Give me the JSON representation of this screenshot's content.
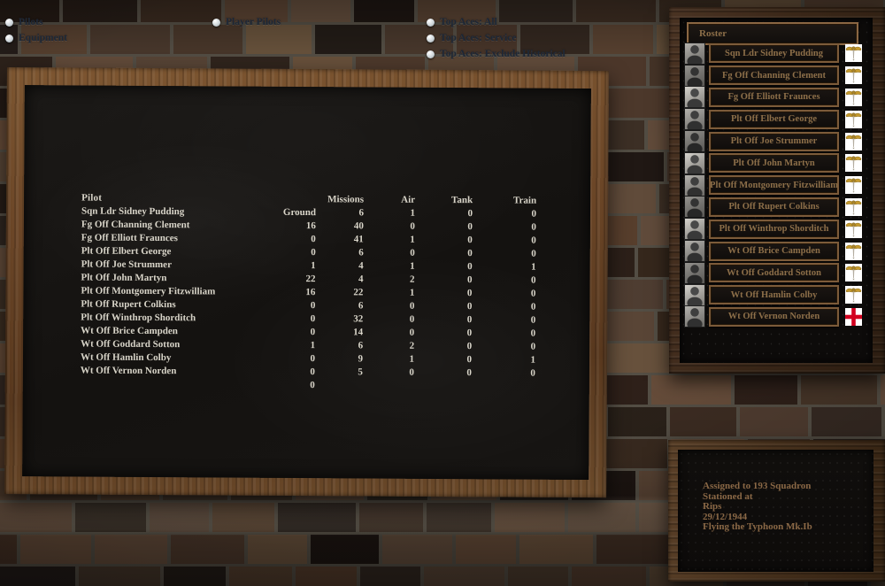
{
  "top_nav": {
    "left_options": [
      {
        "label": "Pilots"
      },
      {
        "label": "Equipment"
      }
    ],
    "center_options": [
      {
        "label": "Player Pilots"
      }
    ],
    "right_options": [
      {
        "label": "Top Aces: All"
      },
      {
        "label": "Top Aces: Service"
      },
      {
        "label": "Top Aces: Exclude Historical"
      }
    ]
  },
  "chalkboard": {
    "columns": [
      "Pilot",
      "Missions",
      "Air",
      "Tank",
      "Train",
      "Ground"
    ],
    "rows": [
      {
        "pilot": "Sqn Ldr Sidney Pudding",
        "missions": "6",
        "air": "1",
        "tank": "0",
        "train": "0",
        "ground": "16"
      },
      {
        "pilot": "Fg Off Channing Clement",
        "missions": "40",
        "air": "0",
        "tank": "0",
        "train": "0",
        "ground": "0"
      },
      {
        "pilot": "Fg Off Elliott Fraunces",
        "missions": "41",
        "air": "1",
        "tank": "0",
        "train": "0",
        "ground": "0"
      },
      {
        "pilot": "Plt Off Elbert George",
        "missions": "6",
        "air": "0",
        "tank": "0",
        "train": "0",
        "ground": "1"
      },
      {
        "pilot": "Plt Off Joe Strummer",
        "missions": "4",
        "air": "1",
        "tank": "0",
        "train": "1",
        "ground": "22"
      },
      {
        "pilot": "Plt Off John Martyn",
        "missions": "4",
        "air": "2",
        "tank": "0",
        "train": "0",
        "ground": "16"
      },
      {
        "pilot": "Plt Off Montgomery Fitzwilliam",
        "missions": "22",
        "air": "1",
        "tank": "0",
        "train": "0",
        "ground": "0"
      },
      {
        "pilot": "Plt Off Rupert Colkins",
        "missions": "6",
        "air": "0",
        "tank": "0",
        "train": "0",
        "ground": "0"
      },
      {
        "pilot": "Plt Off Winthrop Shorditch",
        "missions": "32",
        "air": "0",
        "tank": "0",
        "train": "0",
        "ground": "0"
      },
      {
        "pilot": "Wt Off Brice Campden",
        "missions": "14",
        "air": "0",
        "tank": "0",
        "train": "0",
        "ground": "1"
      },
      {
        "pilot": "Wt Off Goddard Sotton",
        "missions": "6",
        "air": "2",
        "tank": "0",
        "train": "0",
        "ground": "0"
      },
      {
        "pilot": "Wt Off Hamlin Colby",
        "missions": "9",
        "air": "1",
        "tank": "0",
        "train": "1",
        "ground": "0"
      },
      {
        "pilot": "Wt Off Vernon Norden",
        "missions": "5",
        "air": "0",
        "tank": "0",
        "train": "0",
        "ground": "0"
      }
    ]
  },
  "roster": {
    "title": "Roster",
    "pilots": [
      {
        "name": "Sqn Ldr Sidney Pudding",
        "icon": "wings-badge"
      },
      {
        "name": "Fg Off Channing Clement",
        "icon": "wings-badge"
      },
      {
        "name": "Fg Off Elliott Fraunces",
        "icon": "wings-badge"
      },
      {
        "name": "Plt Off Elbert George",
        "icon": "wings-badge"
      },
      {
        "name": "Plt Off Joe Strummer",
        "icon": "wings-badge"
      },
      {
        "name": "Plt Off John Martyn",
        "icon": "wings-badge"
      },
      {
        "name": "Plt Off Montgomery Fitzwilliam",
        "icon": "wings-badge"
      },
      {
        "name": "Plt Off Rupert Colkins",
        "icon": "wings-badge"
      },
      {
        "name": "Plt Off Winthrop Shorditch",
        "icon": "wings-badge"
      },
      {
        "name": "Wt Off Brice Campden",
        "icon": "wings-badge"
      },
      {
        "name": "Wt Off Goddard Sotton",
        "icon": "wings-badge"
      },
      {
        "name": "Wt Off Hamlin Colby",
        "icon": "wings-badge"
      },
      {
        "name": "Wt Off Vernon Norden",
        "icon": "england-flag"
      }
    ]
  },
  "info_panel": {
    "lines": [
      "Assigned to 193 Squadron",
      "Stationed at",
      "Rips",
      "29/12/1944",
      "Flying the Typhoon Mk.Ib"
    ]
  },
  "colors": {
    "nav_text": "#1d2736",
    "chalk_text": "#d9d5c9",
    "plaque_text": "#8d6f49",
    "info_text": "#8a6846",
    "flag_red": "#d2001f",
    "wings_gold": "#c59a2e"
  }
}
